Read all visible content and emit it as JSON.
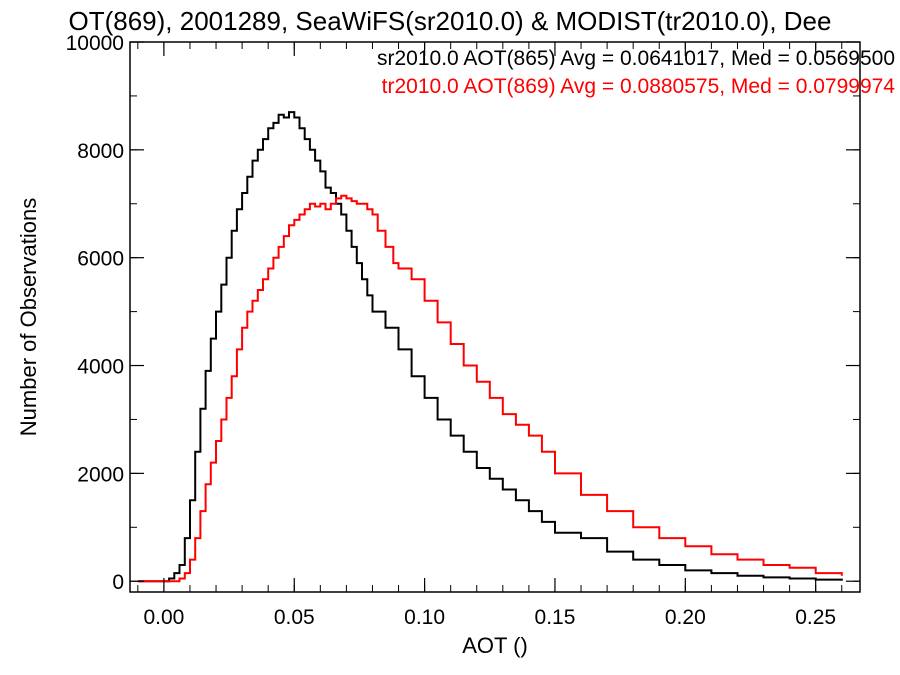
{
  "chart_data": {
    "type": "line",
    "title": "OT(869), 2001289, SeaWiFS(sr2010.0) & MODIST(tr2010.0), Dee",
    "xlabel": "AOT ()",
    "ylabel": "Number of Observations",
    "xlim": [
      -0.013,
      0.267
    ],
    "ylim": [
      -200,
      10000
    ],
    "x_ticks": [
      0.0,
      0.05,
      0.1,
      0.15,
      0.2,
      0.25
    ],
    "x_tick_labels": [
      "0.00",
      "0.05",
      "0.10",
      "0.15",
      "0.20",
      "0.25"
    ],
    "y_ticks": [
      0,
      2000,
      4000,
      6000,
      8000,
      10000
    ],
    "y_tick_labels": [
      "0",
      "2000",
      "4000",
      "6000",
      "8000",
      "10000"
    ],
    "x_minor_step": 0.01,
    "y_minor_step": 1000,
    "grid": false,
    "step": true,
    "legend_placement": "top-right",
    "series": [
      {
        "name": "sr2010.0 AOT(865) Avg = 0.0641017, Med = 0.0569500",
        "color": "#000000",
        "x": [
          -0.01,
          0.0,
          0.002,
          0.004,
          0.006,
          0.008,
          0.01,
          0.012,
          0.014,
          0.016,
          0.018,
          0.02,
          0.022,
          0.024,
          0.026,
          0.028,
          0.03,
          0.032,
          0.034,
          0.036,
          0.038,
          0.04,
          0.042,
          0.044,
          0.046,
          0.048,
          0.05,
          0.052,
          0.054,
          0.056,
          0.058,
          0.06,
          0.062,
          0.064,
          0.066,
          0.068,
          0.07,
          0.072,
          0.074,
          0.076,
          0.078,
          0.08,
          0.085,
          0.09,
          0.095,
          0.1,
          0.105,
          0.11,
          0.115,
          0.12,
          0.125,
          0.13,
          0.135,
          0.14,
          0.145,
          0.15,
          0.16,
          0.17,
          0.18,
          0.19,
          0.2,
          0.21,
          0.22,
          0.23,
          0.24,
          0.25,
          0.26
        ],
        "y": [
          0,
          0,
          50,
          150,
          300,
          800,
          1500,
          2400,
          3200,
          3900,
          4500,
          5000,
          5500,
          6000,
          6500,
          6900,
          7200,
          7500,
          7800,
          8000,
          8200,
          8400,
          8500,
          8650,
          8600,
          8700,
          8600,
          8400,
          8200,
          8000,
          7800,
          7600,
          7300,
          7200,
          7000,
          6800,
          6500,
          6200,
          5900,
          5600,
          5300,
          5000,
          4700,
          4300,
          3800,
          3400,
          3000,
          2700,
          2400,
          2100,
          1900,
          1700,
          1500,
          1300,
          1100,
          900,
          800,
          550,
          400,
          300,
          200,
          150,
          100,
          70,
          50,
          30,
          10
        ]
      },
      {
        "name": "tr2010.0 AOT(869) Avg = 0.0880575, Med = 0.0799974",
        "color": "#ff0000",
        "x": [
          -0.01,
          0.0,
          0.004,
          0.006,
          0.008,
          0.01,
          0.012,
          0.014,
          0.016,
          0.018,
          0.02,
          0.022,
          0.024,
          0.026,
          0.028,
          0.03,
          0.032,
          0.034,
          0.036,
          0.038,
          0.04,
          0.042,
          0.044,
          0.046,
          0.048,
          0.05,
          0.052,
          0.054,
          0.056,
          0.058,
          0.06,
          0.062,
          0.064,
          0.066,
          0.068,
          0.07,
          0.072,
          0.074,
          0.076,
          0.078,
          0.08,
          0.082,
          0.085,
          0.088,
          0.09,
          0.095,
          0.1,
          0.105,
          0.11,
          0.115,
          0.12,
          0.125,
          0.13,
          0.135,
          0.14,
          0.145,
          0.15,
          0.16,
          0.17,
          0.18,
          0.19,
          0.2,
          0.21,
          0.22,
          0.23,
          0.24,
          0.25,
          0.26
        ],
        "y": [
          0,
          0,
          0,
          50,
          150,
          400,
          800,
          1300,
          1800,
          2200,
          2600,
          3000,
          3400,
          3800,
          4300,
          4700,
          5000,
          5200,
          5400,
          5600,
          5800,
          6000,
          6200,
          6400,
          6600,
          6700,
          6800,
          6900,
          7000,
          6950,
          7000,
          6900,
          7000,
          7100,
          7150,
          7100,
          7050,
          7000,
          7000,
          6900,
          6800,
          6500,
          6200,
          5900,
          5800,
          5600,
          5200,
          4800,
          4400,
          4000,
          3700,
          3400,
          3100,
          2900,
          2700,
          2400,
          2000,
          1600,
          1300,
          1000,
          800,
          650,
          500,
          400,
          300,
          250,
          150,
          100
        ]
      }
    ]
  }
}
